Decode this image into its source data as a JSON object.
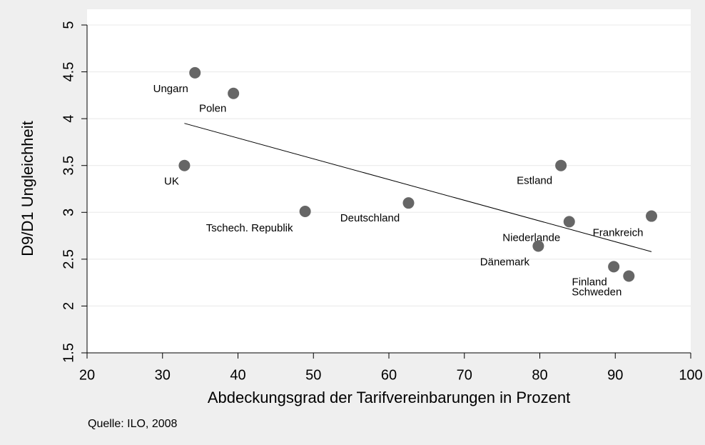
{
  "chart_data": {
    "type": "scatter",
    "x_label": "Abdeckungsgrad der Tarifvereinbarungen in Prozent",
    "y_label": "D9/D1 Ungleichheit",
    "source": "Quelle: ILO, 2008",
    "labels": [
      "Ungarn",
      "Polen",
      "UK",
      "Tschech. Republik",
      "Deutschland",
      "Estland",
      "Niederlande",
      "Dänemark",
      "Frankreich",
      "Finland",
      "Schweden"
    ],
    "x": [
      34.3,
      39.4,
      32.9,
      48.9,
      62.6,
      82.8,
      83.9,
      79.8,
      94.8,
      89.8,
      91.8
    ],
    "y": [
      4.49,
      4.27,
      3.5,
      3.01,
      3.1,
      3.5,
      2.9,
      2.64,
      2.96,
      2.42,
      2.32
    ],
    "color": "#666666",
    "trend": {
      "x": [
        32.9,
        94.8
      ],
      "y": [
        3.95,
        2.58
      ]
    },
    "xlim": [
      20,
      100
    ],
    "xticks": [
      20,
      30,
      40,
      50,
      60,
      70,
      80,
      90,
      100
    ],
    "ylim": [
      1.5,
      5
    ],
    "yticks": [
      1.5,
      2,
      2.5,
      3,
      3.5,
      4,
      4.5,
      5
    ],
    "grid": true
  }
}
